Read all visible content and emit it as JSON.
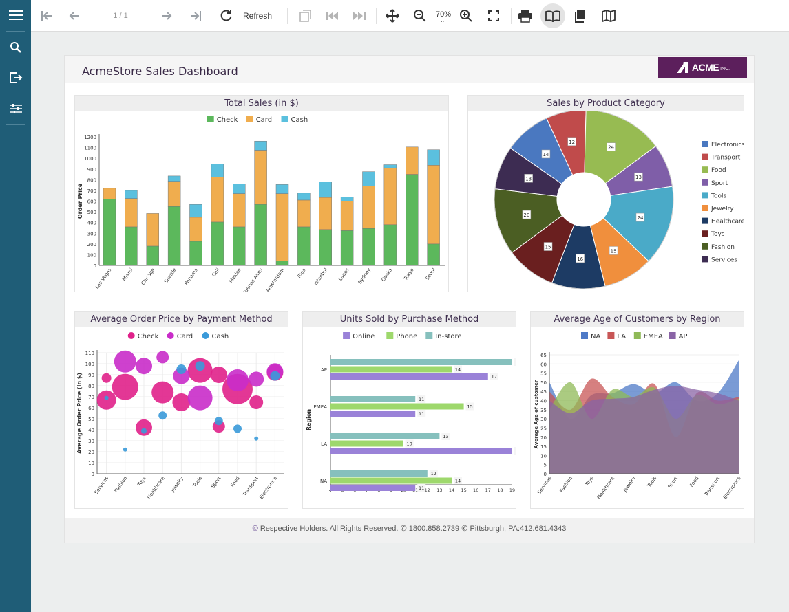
{
  "toolbar": {
    "page_info": "1 / 1",
    "refresh_label": "Refresh",
    "zoom_value": "70%"
  },
  "sidebar": {
    "items": [
      {
        "name": "menu-icon"
      },
      {
        "name": "search-icon"
      },
      {
        "name": "export-icon"
      },
      {
        "name": "parameters-icon"
      }
    ]
  },
  "report": {
    "title": "AcmeStore Sales Dashboard",
    "logo_text": "ACME",
    "logo_suffix": "INC."
  },
  "footer": {
    "copyright": "Respective Holders. All Rights Reserved.",
    "phone1": "1800.858.2739",
    "phone2": "Pittsburgh, PA:412.681.4343"
  },
  "colors": {
    "sidebar": "#1f5d77",
    "accent": "#5c1f5c",
    "check": "#5cb85c",
    "card": "#f0ad4e",
    "cash": "#5bc0de"
  },
  "charts": {
    "total_sales": {
      "title": "Total Sales (in $)",
      "ylabel": "Order Price"
    },
    "category": {
      "title": "Sales by Product Category"
    },
    "avg_order": {
      "title": "Average Order Price by Payment Method",
      "ylabel": "Average Order Price (in $)"
    },
    "units": {
      "title": "Units Sold by Purchase Method",
      "ylabel": "Region"
    },
    "age": {
      "title": "Average Age of Customers by Region",
      "ylabel": "Average Age of customer"
    }
  },
  "chart_data": [
    {
      "type": "bar",
      "title": "Total Sales (in $)",
      "ylabel": "Order Price",
      "ylim": [
        0,
        1200
      ],
      "yticks": [
        0,
        100,
        200,
        300,
        400,
        500,
        600,
        700,
        800,
        900,
        1000,
        1100,
        1200
      ],
      "categories": [
        "Las Vegas",
        "Miami",
        "Chicago",
        "Seattle",
        "Panama",
        "Cali",
        "Mexico",
        "Buenos Aires",
        "Amsterdam",
        "Riga",
        "Istanbul",
        "Lagos",
        "Sydney",
        "Osaka",
        "Tokyo",
        "Seoul"
      ],
      "series": [
        {
          "name": "Check",
          "color": "#5cb85c",
          "values": [
            620,
            360,
            180,
            550,
            225,
            405,
            360,
            570,
            40,
            360,
            335,
            325,
            345,
            380,
            850,
            200
          ]
        },
        {
          "name": "Card",
          "color": "#f0ad4e",
          "values": [
            100,
            265,
            305,
            235,
            225,
            420,
            310,
            505,
            630,
            250,
            300,
            275,
            395,
            530,
            255,
            735
          ]
        },
        {
          "name": "Cash",
          "color": "#5bc0de",
          "values": [
            0,
            75,
            0,
            50,
            120,
            120,
            90,
            85,
            85,
            65,
            145,
            40,
            135,
            30,
            0,
            145
          ]
        }
      ]
    },
    {
      "type": "pie",
      "title": "Sales by Product Category",
      "categories": [
        "Electronics",
        "Transport",
        "Food",
        "Sport",
        "Tools",
        "Jewelry",
        "Healthcare",
        "Toys",
        "Fashion",
        "Services"
      ],
      "values": [
        14,
        12,
        24,
        13,
        24,
        15,
        16,
        15,
        20,
        13
      ],
      "colors": [
        "#4a78c0",
        "#c04b4b",
        "#97bb52",
        "#7f5ea8",
        "#4aaac8",
        "#f08f3d",
        "#1d3b64",
        "#6a1f1f",
        "#4b5e23",
        "#3d2c52"
      ]
    },
    {
      "type": "scatter",
      "title": "Average Order Price by Payment Method",
      "ylabel": "Average Order Price (in $)",
      "ylim": [
        0,
        110
      ],
      "yticks": [
        0,
        10,
        20,
        30,
        40,
        50,
        60,
        70,
        80,
        90,
        100,
        110
      ],
      "categories": [
        "Services",
        "Fashion",
        "Toys",
        "Healthcare",
        "Jewelry",
        "Tools",
        "Sport",
        "Food",
        "Transport",
        "Electronics"
      ],
      "series": [
        {
          "name": "Check",
          "color": "#e0218a",
          "points": [
            [
              0,
              87,
              7
            ],
            [
              0,
              67,
              14
            ],
            [
              1,
              79,
              19
            ],
            [
              2,
              42,
              12
            ],
            [
              3,
              74,
              16
            ],
            [
              4,
              65,
              13
            ],
            [
              5,
              94,
              18
            ],
            [
              6,
              90,
              12
            ],
            [
              6,
              43,
              9
            ],
            [
              7,
              77,
              22
            ],
            [
              8,
              65,
              10
            ],
            [
              9,
              92,
              12
            ]
          ]
        },
        {
          "name": "Card",
          "color": "#c92cc9",
          "points": [
            [
              1,
              102,
              16
            ],
            [
              2,
              98,
              12
            ],
            [
              3,
              106,
              9
            ],
            [
              4,
              89,
              12
            ],
            [
              5,
              69,
              18
            ],
            [
              7,
              85,
              16
            ],
            [
              8,
              86,
              11
            ],
            [
              9,
              93,
              12
            ]
          ]
        },
        {
          "name": "Cash",
          "color": "#3a9ad9",
          "points": [
            [
              0,
              69,
              3
            ],
            [
              1,
              22,
              3
            ],
            [
              2,
              39,
              4
            ],
            [
              3,
              53,
              6
            ],
            [
              4,
              95,
              7
            ],
            [
              5,
              98,
              7
            ],
            [
              6,
              48,
              6
            ],
            [
              7,
              41,
              6
            ],
            [
              8,
              32,
              3
            ],
            [
              9,
              89,
              7
            ]
          ]
        }
      ]
    },
    {
      "type": "bar",
      "orientation": "horizontal",
      "title": "Units Sold by Purchase Method",
      "ylabel": "Region",
      "xlim": [
        4,
        19
      ],
      "xticks": [
        4,
        5,
        6,
        7,
        8,
        9,
        10,
        11,
        12,
        13,
        14,
        15,
        16,
        17,
        18,
        19
      ],
      "categories": [
        "AP",
        "EMEA",
        "LA",
        "NA"
      ],
      "series": [
        {
          "name": "Online",
          "color": "#9a82d8",
          "values": [
            17,
            11,
            19,
            11
          ]
        },
        {
          "name": "Phone",
          "color": "#9ed86c",
          "values": [
            14,
            15,
            10,
            14
          ]
        },
        {
          "name": "In-store",
          "color": "#86c0bd",
          "values": [
            19,
            11,
            13,
            12
          ]
        }
      ]
    },
    {
      "type": "area",
      "title": "Average Age of Customers by Region",
      "ylabel": "Average Age of customer",
      "ylim": [
        0,
        65
      ],
      "yticks": [
        0,
        5,
        10,
        15,
        20,
        25,
        30,
        35,
        40,
        45,
        50,
        55,
        60,
        65
      ],
      "categories": [
        "Services",
        "Fashion",
        "Toys",
        "Healthcare",
        "Jewelry",
        "Tools",
        "Sport",
        "Food",
        "Transport",
        "Electronics"
      ],
      "series": [
        {
          "name": "NA",
          "color": "#4e7ac7",
          "values": [
            50,
            30,
            43,
            44,
            49,
            44,
            50,
            40,
            44,
            62
          ]
        },
        {
          "name": "LA",
          "color": "#c85656",
          "values": [
            45,
            35,
            52,
            42,
            38,
            49,
            20,
            44,
            40,
            42
          ]
        },
        {
          "name": "EMEA",
          "color": "#8fb957",
          "values": [
            35,
            50,
            30,
            46,
            42,
            47,
            30,
            43,
            38,
            41
          ]
        },
        {
          "name": "AP",
          "color": "#8a64a6",
          "values": [
            40,
            33,
            40,
            41,
            42,
            46,
            48,
            46,
            44,
            40
          ]
        }
      ]
    }
  ]
}
